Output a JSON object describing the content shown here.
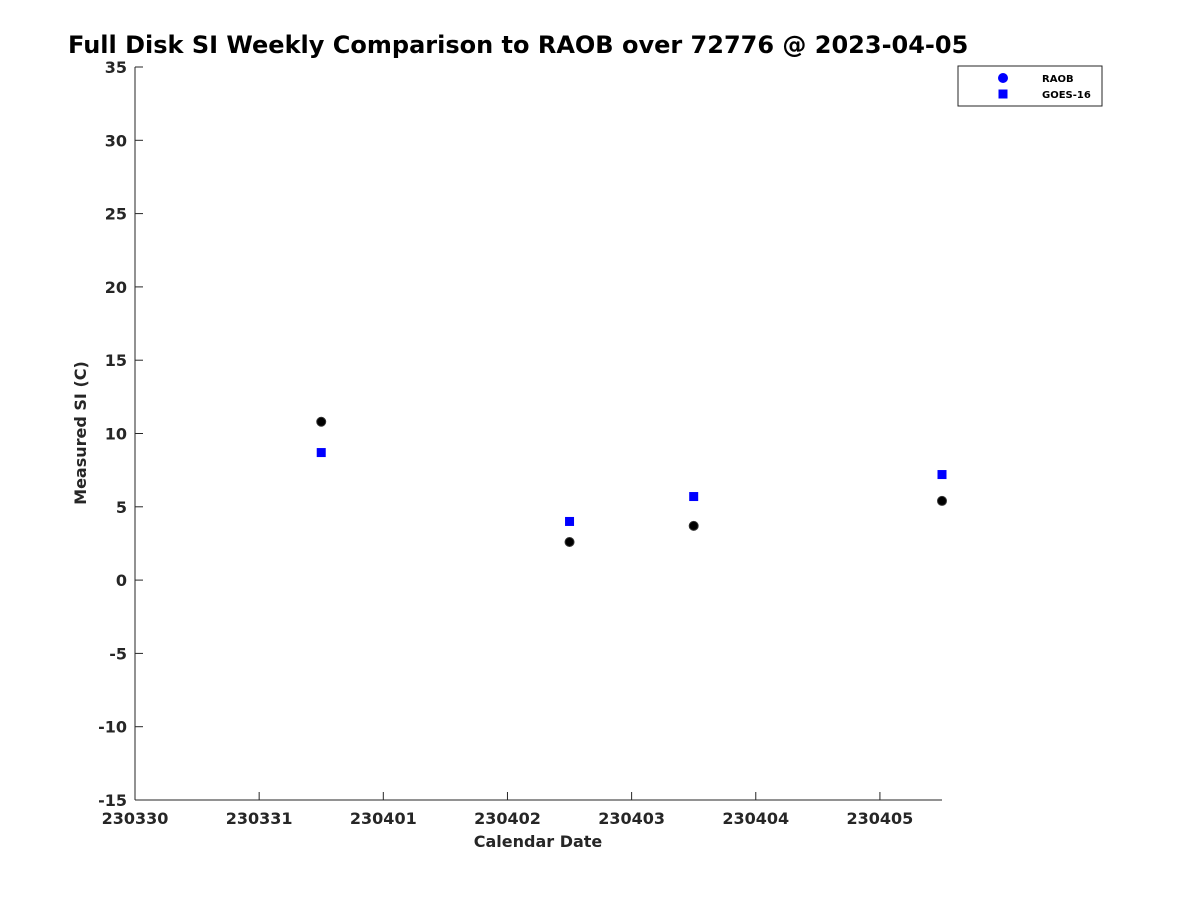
{
  "chart_data": {
    "type": "scatter",
    "title": "Full Disk SI Weekly Comparison to RAOB over 72776 @ 2023-04-05",
    "xlabel": "Calendar Date",
    "ylabel": "Measured SI (C)",
    "xlim": [
      "2023-03-30",
      "2023-04-05 12:00"
    ],
    "ylim": [
      -15,
      35
    ],
    "x_tick_labels": [
      "230330",
      "230331",
      "230401",
      "230402",
      "230403",
      "230404",
      "230405"
    ],
    "y_tick_labels": [
      "-15",
      "-10",
      "-5",
      "0",
      "5",
      "10",
      "15",
      "20",
      "25",
      "30",
      "35"
    ],
    "grid": false,
    "legend_position": "top-right",
    "series": [
      {
        "name": "RAOB",
        "marker": "circle",
        "color": "#000000",
        "legend_color": "#0000ff",
        "points": [
          {
            "x": "2023-03-31 12:00",
            "y": 10.8
          },
          {
            "x": "2023-04-02 12:00",
            "y": 2.6
          },
          {
            "x": "2023-04-03 12:00",
            "y": 3.7
          },
          {
            "x": "2023-04-05 12:00",
            "y": 5.4
          }
        ]
      },
      {
        "name": "GOES-16",
        "marker": "square",
        "color": "#0000ff",
        "legend_color": "#0000ff",
        "points": [
          {
            "x": "2023-03-31 12:00",
            "y": 8.7
          },
          {
            "x": "2023-04-02 12:00",
            "y": 4.0
          },
          {
            "x": "2023-04-03 12:00",
            "y": 5.7
          },
          {
            "x": "2023-04-05 12:00",
            "y": 7.2
          }
        ]
      }
    ]
  }
}
